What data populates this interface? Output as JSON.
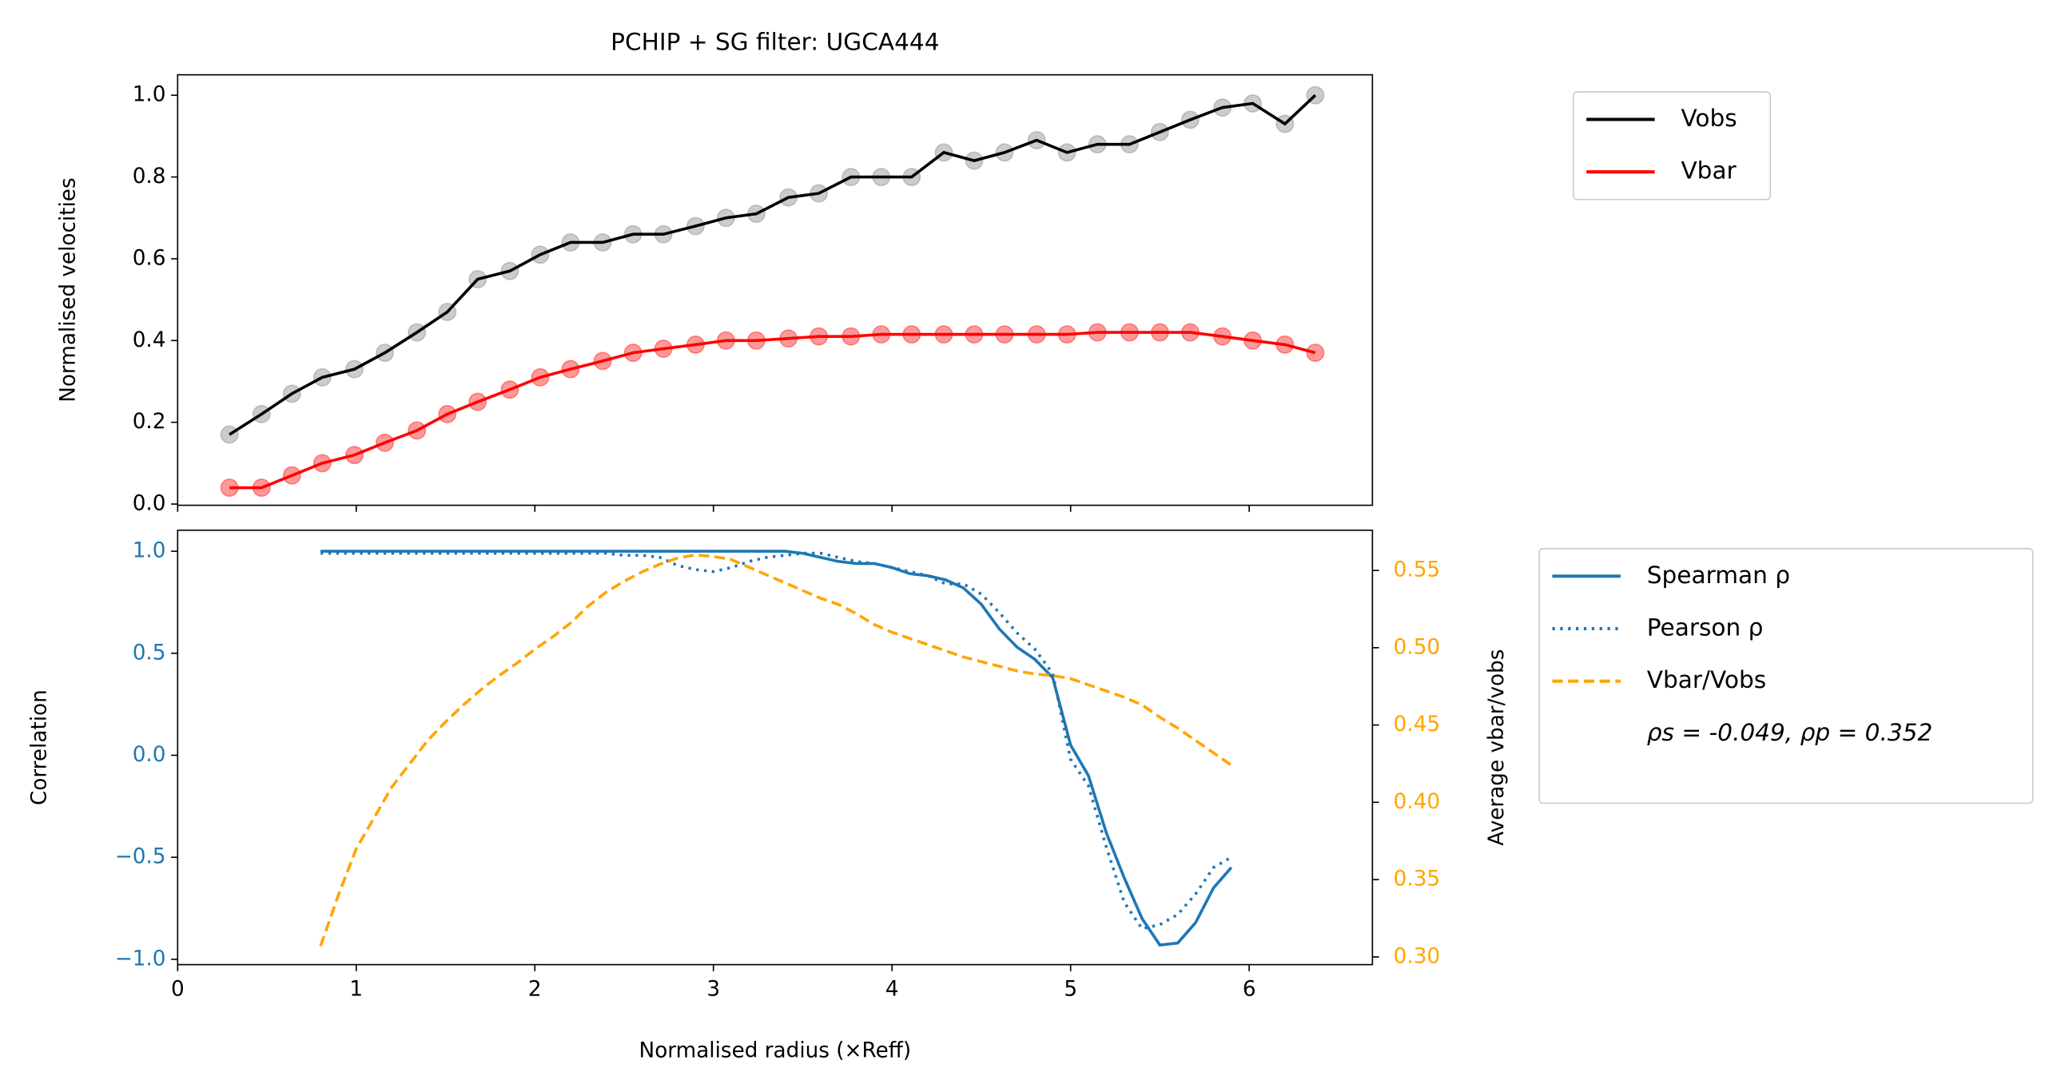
{
  "chart_data": [
    {
      "type": "line",
      "title": "PCHIP + SG filter: UGCA444",
      "ylabel": "Normalised velocities",
      "x": [
        0.29,
        0.47,
        0.64,
        0.81,
        0.99,
        1.16,
        1.34,
        1.51,
        1.68,
        1.86,
        2.03,
        2.2,
        2.38,
        2.55,
        2.72,
        2.9,
        3.07,
        3.24,
        3.42,
        3.59,
        3.77,
        3.94,
        4.11,
        4.29,
        4.46,
        4.63,
        4.81,
        4.98,
        5.15,
        5.33,
        5.5,
        5.67,
        5.85,
        6.02,
        6.2,
        6.37
      ],
      "series": [
        {
          "name": "Vobs",
          "color": "#000000",
          "marker_color": "#808080",
          "values": [
            0.17,
            0.22,
            0.27,
            0.31,
            0.33,
            0.37,
            0.42,
            0.47,
            0.55,
            0.57,
            0.61,
            0.64,
            0.64,
            0.66,
            0.66,
            0.68,
            0.7,
            0.71,
            0.75,
            0.76,
            0.8,
            0.8,
            0.8,
            0.86,
            0.84,
            0.86,
            0.89,
            0.86,
            0.88,
            0.88,
            0.91,
            0.94,
            0.97,
            0.98,
            0.93,
            1.0
          ]
        },
        {
          "name": "Vbar",
          "color": "#ff0000",
          "marker_color": "#ff0000",
          "values": [
            0.04,
            0.04,
            0.07,
            0.1,
            0.12,
            0.15,
            0.18,
            0.22,
            0.25,
            0.28,
            0.31,
            0.33,
            0.35,
            0.37,
            0.38,
            0.39,
            0.4,
            0.4,
            0.405,
            0.41,
            0.41,
            0.415,
            0.415,
            0.415,
            0.415,
            0.415,
            0.415,
            0.415,
            0.42,
            0.42,
            0.42,
            0.42,
            0.41,
            0.4,
            0.39,
            0.37
          ]
        }
      ],
      "markers": true,
      "xlim": [
        0,
        6.69
      ],
      "xticks": [
        0,
        1,
        2,
        3,
        4,
        5,
        6
      ],
      "ylim": [
        -0.003,
        1.05
      ],
      "yticks": [
        {
          "value": 0,
          "label": "0.0"
        },
        {
          "value": 0.2,
          "label": "0.2"
        },
        {
          "value": 0.4,
          "label": "0.4"
        },
        {
          "value": 0.6,
          "label": "0.6"
        },
        {
          "value": 0.8,
          "label": "0.8"
        },
        {
          "value": 1,
          "label": "1.0"
        }
      ]
    },
    {
      "type": "line",
      "xlabel": "Normalised radius (×Reff)",
      "ylabel": "Correlation",
      "y2label": "Average vbar/vobs",
      "x": [
        0.8,
        0.9,
        1.0,
        1.1,
        1.2,
        1.3,
        1.4,
        1.5,
        1.6,
        1.7,
        1.8,
        1.9,
        2.0,
        2.1,
        2.2,
        2.3,
        2.4,
        2.5,
        2.6,
        2.7,
        2.8,
        2.9,
        3.0,
        3.1,
        3.2,
        3.3,
        3.4,
        3.5,
        3.6,
        3.7,
        3.8,
        3.9,
        4.0,
        4.1,
        4.2,
        4.3,
        4.4,
        4.5,
        4.6,
        4.7,
        4.8,
        4.9,
        5.0,
        5.1,
        5.2,
        5.3,
        5.4,
        5.5,
        5.6,
        5.7,
        5.8,
        5.9
      ],
      "series": [
        {
          "name": "Spearman ρ",
          "color": "#1f77b4",
          "dash": "solid",
          "values": [
            1,
            1,
            1,
            1,
            1,
            1,
            1,
            1,
            1,
            1,
            1,
            1,
            1,
            1,
            1,
            1,
            1,
            1,
            1,
            1,
            1,
            1,
            1,
            1,
            1,
            1,
            1,
            0.99,
            0.97,
            0.95,
            0.94,
            0.94,
            0.92,
            0.89,
            0.88,
            0.86,
            0.82,
            0.74,
            0.62,
            0.53,
            0.47,
            0.38,
            0.05,
            -0.1,
            -0.38,
            -0.6,
            -0.8,
            -0.93,
            -0.92,
            -0.82,
            -0.65,
            -0.55
          ]
        },
        {
          "name": "Pearson ρ",
          "color": "#1f77b4",
          "dash": "dotted",
          "values": [
            0.99,
            0.99,
            0.99,
            0.99,
            0.99,
            0.99,
            0.99,
            0.99,
            0.99,
            0.99,
            0.99,
            0.99,
            0.99,
            0.99,
            0.99,
            0.99,
            0.99,
            0.98,
            0.98,
            0.97,
            0.93,
            0.91,
            0.9,
            0.92,
            0.95,
            0.97,
            0.98,
            0.99,
            0.99,
            0.97,
            0.95,
            0.94,
            0.92,
            0.9,
            0.88,
            0.84,
            0.84,
            0.79,
            0.7,
            0.6,
            0.52,
            0.4,
            -0.02,
            -0.15,
            -0.45,
            -0.72,
            -0.85,
            -0.83,
            -0.78,
            -0.68,
            -0.55,
            -0.5
          ]
        },
        {
          "name": "Vbar/Vobs",
          "color": "#ffa500",
          "dash": "dashed",
          "axis": "y2",
          "values": [
            0.307,
            0.34,
            0.37,
            0.39,
            0.41,
            0.425,
            0.44,
            0.452,
            0.463,
            0.473,
            0.482,
            0.49,
            0.499,
            0.507,
            0.516,
            0.527,
            0.536,
            0.543,
            0.549,
            0.554,
            0.558,
            0.56,
            0.559,
            0.557,
            0.552,
            0.547,
            0.542,
            0.537,
            0.532,
            0.528,
            0.522,
            0.515,
            0.51,
            0.506,
            0.502,
            0.498,
            0.494,
            0.491,
            0.488,
            0.485,
            0.483,
            0.482,
            0.48,
            0.476,
            0.472,
            0.468,
            0.463,
            0.455,
            0.448,
            0.44,
            0.432,
            0.424
          ]
        }
      ],
      "legend_note": "ρs = -0.049, ρp = 0.352",
      "xlim": [
        0,
        6.69
      ],
      "xticks": [
        0,
        1,
        2,
        3,
        4,
        5,
        6
      ],
      "ylim": [
        -1.026,
        1.103
      ],
      "ycolor": "#1f77b4",
      "yticks": [
        {
          "value": -1,
          "label": "−1.0"
        },
        {
          "value": -0.5,
          "label": "−0.5"
        },
        {
          "value": 0,
          "label": "0.0"
        },
        {
          "value": 0.5,
          "label": "0.5"
        },
        {
          "value": 1,
          "label": "1.0"
        }
      ],
      "y2lim": [
        0.295,
        0.576
      ],
      "y2color": "#ffa500",
      "y2ticks": [
        {
          "value": 0.3,
          "label": "0.30"
        },
        0.35,
        {
          "value": 0.4,
          "label": "0.40"
        },
        0.45,
        {
          "value": 0.5,
          "label": "0.50"
        },
        0.55
      ]
    }
  ]
}
